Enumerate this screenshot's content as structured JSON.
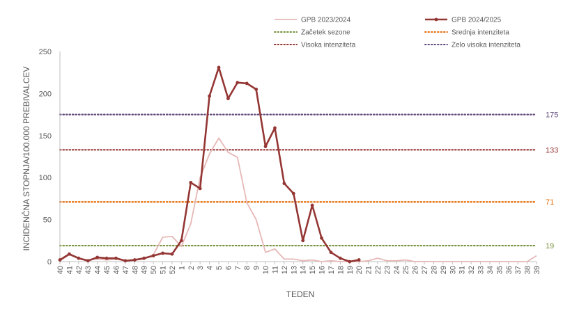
{
  "chart_data": {
    "type": "line",
    "xlabel": "TEDEN",
    "ylabel": "INCIDENČNA  STOPNJA/100.000  PREBIVALCEV",
    "ylim": [
      0,
      250
    ],
    "yticks": [
      "0",
      "50",
      "100",
      "150",
      "200",
      "250"
    ],
    "categories": [
      "40",
      "41",
      "42",
      "43",
      "44",
      "45",
      "46",
      "47",
      "48",
      "49",
      "50",
      "51",
      "52",
      "1",
      "2",
      "3",
      "4",
      "5",
      "6",
      "7",
      "8",
      "9",
      "10",
      "11",
      "12",
      "13",
      "14",
      "15",
      "16",
      "17",
      "18",
      "19",
      "20",
      "21",
      "22",
      "23",
      "24",
      "25",
      "26",
      "27",
      "28",
      "29",
      "30",
      "31",
      "32",
      "33",
      "34",
      "35",
      "36",
      "37",
      "38",
      "39"
    ],
    "series": [
      {
        "name": "GPB 2023/2024",
        "color": "#e6b8b7",
        "markers": false,
        "values": [
          1,
          8,
          4,
          2,
          3,
          2,
          3,
          1,
          2,
          3,
          8,
          29,
          30,
          18,
          45,
          100,
          128,
          147,
          130,
          124,
          70,
          50,
          11,
          15,
          3,
          3,
          1,
          2,
          0,
          1,
          0,
          0,
          0,
          1,
          4,
          1,
          1,
          2,
          0,
          0,
          0,
          0,
          0,
          0,
          0,
          0,
          0,
          0,
          0,
          0,
          0,
          7
        ]
      },
      {
        "name": "GPB 2024/2025",
        "color": "#943634",
        "markers": true,
        "values": [
          2,
          9,
          4,
          1,
          5,
          4,
          4,
          1,
          2,
          4,
          7,
          10,
          9,
          25,
          94,
          87,
          197,
          231,
          194,
          213,
          212,
          205,
          137,
          159,
          93,
          81,
          25,
          67,
          28,
          11,
          4,
          0,
          2,
          null,
          null,
          null,
          null,
          null,
          null,
          null,
          null,
          null,
          null,
          null,
          null,
          null,
          null,
          null,
          null,
          null,
          null,
          null
        ]
      }
    ],
    "thresholds": [
      {
        "name": "Začetek sezone",
        "value": 19,
        "label": "19",
        "color": "#76923c"
      },
      {
        "name": "Srednja intenziteta",
        "value": 71,
        "label": "71",
        "color": "#e36c09"
      },
      {
        "name": "Visoka intenziteta",
        "value": 133,
        "label": "133",
        "color": "#953735"
      },
      {
        "name": "Zelo visoka intenziteta",
        "value": 175,
        "label": "175",
        "color": "#5f497a"
      }
    ],
    "legend": {
      "placement": "top-right",
      "entries": [
        {
          "label": "GPB 2023/2024",
          "color": "#e6b8b7",
          "style": "solid-thin"
        },
        {
          "label": "GPB 2024/2025",
          "color": "#943634",
          "style": "solid-thick-marker"
        },
        {
          "label": "Začetek sezone",
          "color": "#76923c",
          "style": "dotted"
        },
        {
          "label": "Srednja intenziteta",
          "color": "#e36c09",
          "style": "dotted"
        },
        {
          "label": "Visoka intenziteta",
          "color": "#953735",
          "style": "dotted"
        },
        {
          "label": "Zelo visoka intenziteta",
          "color": "#5f497a",
          "style": "dotted"
        }
      ]
    },
    "grid": false
  }
}
